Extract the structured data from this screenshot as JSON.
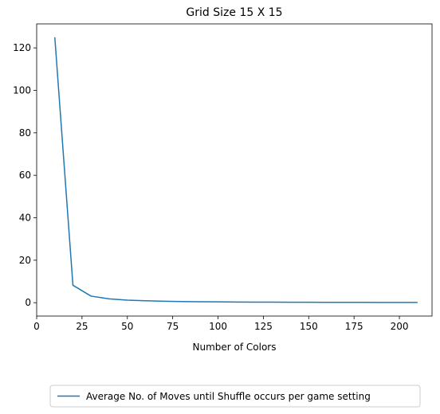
{
  "chart_data": {
    "type": "line",
    "title": "Grid Size 15 X 15",
    "xlabel": "Number of Colors",
    "ylabel": "",
    "xlim": [
      0,
      218
    ],
    "ylim": [
      -6.3,
      131.3
    ],
    "xticks": [
      0,
      25,
      50,
      75,
      100,
      125,
      150,
      175,
      200
    ],
    "yticks": [
      0,
      20,
      40,
      60,
      80,
      100,
      120
    ],
    "grid": false,
    "legend_position": "bottom-center",
    "series": [
      {
        "name": "Average No. of Moves until Shuffle occurs per game setting",
        "color": "#1f77b4",
        "x": [
          10,
          20,
          30,
          40,
          50,
          60,
          70,
          80,
          90,
          100,
          110,
          120,
          130,
          140,
          150,
          160,
          170,
          180,
          190,
          200,
          210
        ],
        "y": [
          125,
          8.2,
          3.1,
          1.8,
          1.2,
          0.9,
          0.7,
          0.55,
          0.45,
          0.38,
          0.32,
          0.28,
          0.25,
          0.22,
          0.2,
          0.18,
          0.16,
          0.15,
          0.14,
          0.13,
          0.12
        ]
      }
    ]
  }
}
